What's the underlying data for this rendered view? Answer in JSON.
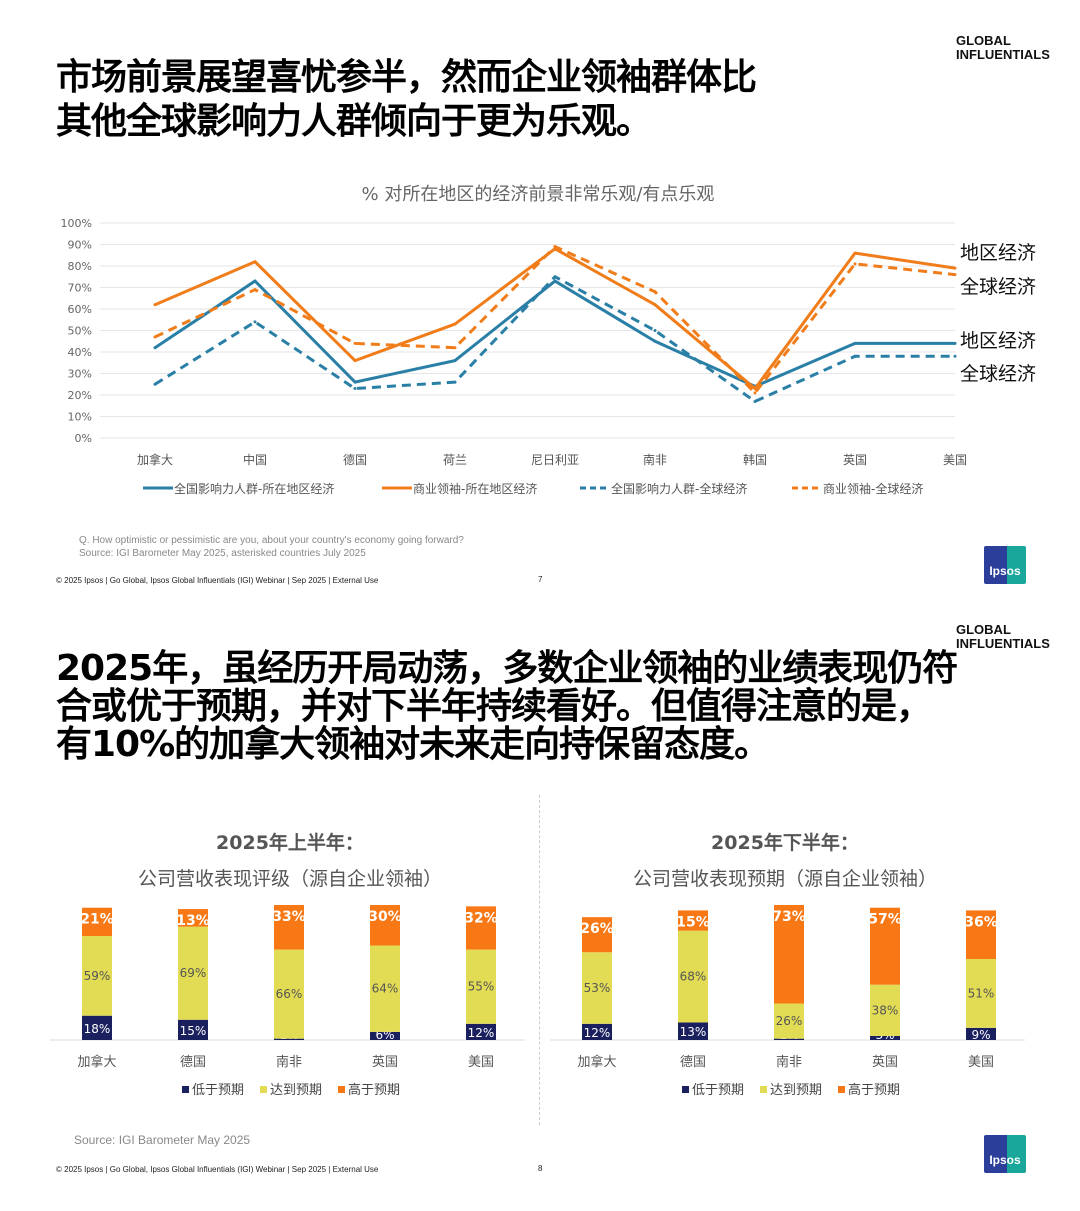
{
  "slide1": {
    "title_lines": [
      "市场前景展望喜忧参半，然而企业领袖群体比",
      "其他全球影响力人群倾向于更为乐观。"
    ],
    "brand": [
      "GLOBAL",
      "INFLUENTIALS"
    ],
    "note_q": "Q. How optimistic or pessimistic are you, about your country's economy going forward?",
    "note_source": "Source: IGI Barometer May 2025, asterisked countries July 2025",
    "footer": "© 2025 Ipsos | Go Global, Ipsos Global Influentials (IGI) Webinar  | Sep 2025 | External Use",
    "page_number": "7",
    "logo": "Ipsos"
  },
  "slide2": {
    "title_lines": [
      "2025年，虽经历开局动荡，多数企业领袖的业绩表现仍符",
      "合或优于预期，并对下半年持续看好。但值得注意的是，",
      "有10%的加拿大领袖对未来走向持保留态度。"
    ],
    "brand": [
      "GLOBAL",
      "INFLUENTIALS"
    ],
    "source": "Source: IGI Barometer May 2025",
    "footer": "© 2025 Ipsos | Go Global, Ipsos Global Influentials (IGI) Webinar  | Sep 2025 | External Use",
    "page_number": "8",
    "logo": "Ipsos"
  },
  "chart_data": [
    {
      "type": "line",
      "title": "% 对所在地区的经济前景非常乐观/有点乐观",
      "categories": [
        "加拿大",
        "中国",
        "德国",
        "荷兰",
        "尼日利亚",
        "南非",
        "韩国",
        "英国",
        "美国"
      ],
      "yticks": [
        "0%",
        "10%",
        "20%",
        "30%",
        "40%",
        "50%",
        "60%",
        "70%",
        "80%",
        "90%",
        "100%"
      ],
      "ylim": [
        0,
        100
      ],
      "grid": true,
      "legend_position": "bottom",
      "series": [
        {
          "name": "全国影响力人群-所在地区经济",
          "color": "#2a7fa6",
          "dash": false,
          "values": [
            42,
            73,
            26,
            36,
            73,
            45,
            24,
            44,
            44
          ]
        },
        {
          "name": "商业领袖-所在地区经济",
          "color": "#f07d1a",
          "dash": false,
          "values": [
            62,
            82,
            36,
            53,
            88,
            62,
            23,
            86,
            79
          ]
        },
        {
          "name": "全国影响力人群-全球经济",
          "color": "#2a7fa6",
          "dash": true,
          "values": [
            25,
            54,
            23,
            26,
            75,
            50,
            17,
            38,
            38
          ]
        },
        {
          "name": "商业领袖-全球经济",
          "color": "#f07d1a",
          "dash": true,
          "values": [
            47,
            69,
            44,
            42,
            89,
            68,
            21,
            81,
            76
          ]
        }
      ],
      "end_labels": [
        "地区经济",
        "全球经济",
        "地区经济",
        "全球经济"
      ]
    },
    {
      "type": "bar",
      "stacked": true,
      "title": "2025年上半年：",
      "subtitle": "公司营收表现评级（源自企业领袖）",
      "categories": [
        "加拿大",
        "德国",
        "南非",
        "英国",
        "美国"
      ],
      "series": [
        {
          "name": "低于预期",
          "color": "#1a1f5e",
          "values": [
            18,
            15,
            1,
            6,
            12
          ]
        },
        {
          "name": "达到预期",
          "color": "#e2dc55",
          "values": [
            59,
            69,
            66,
            64,
            55
          ]
        },
        {
          "name": "高于预期",
          "color": "#f77814",
          "values": [
            21,
            13,
            33,
            30,
            32
          ]
        }
      ],
      "legend_position": "bottom"
    },
    {
      "type": "bar",
      "stacked": true,
      "title": "2025年下半年：",
      "subtitle": "公司营收表现预期（源自企业领袖）",
      "categories": [
        "加拿大",
        "德国",
        "南非",
        "英国",
        "美国"
      ],
      "series": [
        {
          "name": "低于预期",
          "color": "#1a1f5e",
          "values": [
            12,
            13,
            1,
            3,
            9
          ]
        },
        {
          "name": "达到预期",
          "color": "#e2dc55",
          "values": [
            53,
            68,
            26,
            38,
            51
          ]
        },
        {
          "name": "高于预期",
          "color": "#f77814",
          "values": [
            26,
            15,
            73,
            57,
            36
          ]
        }
      ],
      "legend_position": "bottom"
    }
  ]
}
